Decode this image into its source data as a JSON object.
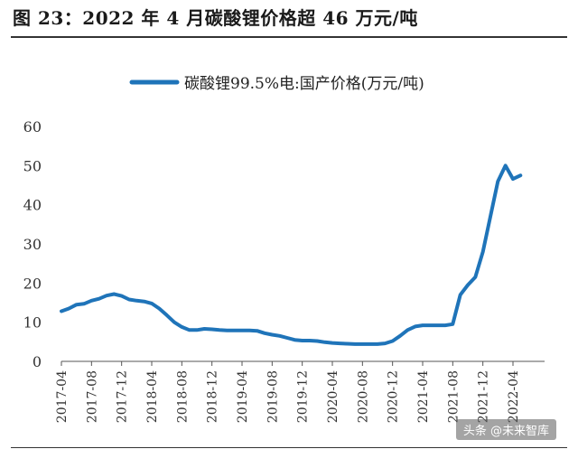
{
  "figure": {
    "title": "图 23：2022 年 4 月碳酸锂价格超 46 万元/吨"
  },
  "watermark": "头条 @未来智库",
  "chart_data": {
    "type": "line",
    "series_color": "#1F74B9",
    "legend": "碳酸锂99.5%电:国产价格(万元/吨)",
    "ylim": [
      0,
      60
    ],
    "yticks": [
      0,
      10,
      20,
      30,
      40,
      50,
      60
    ],
    "xlim": [
      "2017-04",
      "2022-04"
    ],
    "x_ticks": [
      "2017-04",
      "2017-08",
      "2017-12",
      "2018-04",
      "2018-08",
      "2018-12",
      "2019-04",
      "2019-08",
      "2019-12",
      "2020-04",
      "2020-08",
      "2020-12",
      "2021-04",
      "2021-08",
      "2021-12",
      "2022-04"
    ],
    "series": [
      {
        "name": "碳酸锂99.5%电:国产价格(万元/吨)",
        "points": [
          [
            "2017-04",
            12.8
          ],
          [
            "2017-05",
            13.5
          ],
          [
            "2017-06",
            14.5
          ],
          [
            "2017-07",
            14.7
          ],
          [
            "2017-08",
            15.5
          ],
          [
            "2017-09",
            16.0
          ],
          [
            "2017-10",
            16.8
          ],
          [
            "2017-11",
            17.2
          ],
          [
            "2017-12",
            16.7
          ],
          [
            "2018-01",
            15.8
          ],
          [
            "2018-02",
            15.5
          ],
          [
            "2018-03",
            15.3
          ],
          [
            "2018-04",
            14.8
          ],
          [
            "2018-05",
            13.5
          ],
          [
            "2018-06",
            11.8
          ],
          [
            "2018-07",
            10.0
          ],
          [
            "2018-08",
            8.8
          ],
          [
            "2018-09",
            8.0
          ],
          [
            "2018-10",
            8.0
          ],
          [
            "2018-11",
            8.3
          ],
          [
            "2018-12",
            8.2
          ],
          [
            "2019-01",
            8.0
          ],
          [
            "2019-02",
            7.9
          ],
          [
            "2019-03",
            7.9
          ],
          [
            "2019-04",
            7.9
          ],
          [
            "2019-05",
            7.9
          ],
          [
            "2019-06",
            7.8
          ],
          [
            "2019-07",
            7.2
          ],
          [
            "2019-08",
            6.8
          ],
          [
            "2019-09",
            6.5
          ],
          [
            "2019-10",
            6.0
          ],
          [
            "2019-11",
            5.5
          ],
          [
            "2019-12",
            5.3
          ],
          [
            "2020-01",
            5.3
          ],
          [
            "2020-02",
            5.2
          ],
          [
            "2020-03",
            4.9
          ],
          [
            "2020-04",
            4.7
          ],
          [
            "2020-05",
            4.6
          ],
          [
            "2020-06",
            4.5
          ],
          [
            "2020-07",
            4.4
          ],
          [
            "2020-08",
            4.4
          ],
          [
            "2020-09",
            4.4
          ],
          [
            "2020-10",
            4.4
          ],
          [
            "2020-11",
            4.6
          ],
          [
            "2020-12",
            5.2
          ],
          [
            "2021-01",
            6.5
          ],
          [
            "2021-02",
            8.0
          ],
          [
            "2021-03",
            8.9
          ],
          [
            "2021-04",
            9.2
          ],
          [
            "2021-05",
            9.2
          ],
          [
            "2021-06",
            9.2
          ],
          [
            "2021-07",
            9.2
          ],
          [
            "2021-08",
            9.5
          ],
          [
            "2021-09",
            17.0
          ],
          [
            "2021-10",
            19.5
          ],
          [
            "2021-11",
            21.5
          ],
          [
            "2021-12",
            28.0
          ],
          [
            "2022-01",
            37.0
          ],
          [
            "2022-02",
            46.0
          ],
          [
            "2022-03",
            50.0
          ],
          [
            "2022-04",
            46.6
          ],
          [
            "2022-05",
            47.5
          ]
        ]
      }
    ]
  }
}
